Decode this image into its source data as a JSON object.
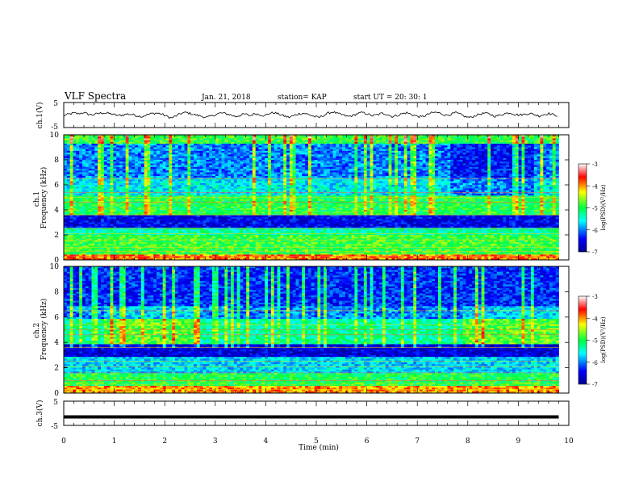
{
  "header": {
    "title": "VLF Spectra",
    "date": "Jan. 21, 2018",
    "station": "station= KAP",
    "start": "start  UT =   20: 30: 1"
  },
  "colorbar": {
    "label": "log(PSD)(V²/Hz)",
    "ticks": [
      "-3",
      "-4",
      "-5",
      "-6",
      "-7"
    ]
  },
  "chart_data": [
    {
      "type": "line",
      "panel": "ch1-waveform",
      "ylabel": "ch.1(V)",
      "ylim": [
        -5,
        5
      ],
      "yticks": [
        5,
        -5
      ],
      "xlim": [
        0,
        10
      ],
      "series": [
        {
          "values": [
            -0.2,
            0.3,
            0.8,
            0.5,
            1.0,
            0.3,
            0.1,
            0.6,
            0.9,
            0.7,
            0.3,
            -0.2,
            0.0,
            0.4,
            0.2,
            -0.3,
            -0.6,
            0.1,
            0.6,
            0.8,
            0.4,
            -0.5,
            -1.2,
            -0.3,
            0.7,
            1.0,
            0.5,
            0.0,
            -0.4,
            -1.0,
            -0.5,
            0.2,
            0.8,
            0.6,
            0.1,
            -0.6,
            -0.1,
            0.4,
            -0.3,
            0.6,
            0.2,
            -0.3,
            0.7,
            0.9,
            0.3,
            -0.4,
            -0.9,
            -0.2,
            0.5,
            0.7,
            0.2,
            -0.5,
            -1.0,
            -0.2,
            0.8,
            1.2,
            0.5,
            0.0,
            -0.6,
            -0.2,
            0.6,
            1.0,
            0.4,
            -0.3,
            0.1,
            0.7,
            0.3,
            -0.6,
            -0.2,
            0.5,
            0.9,
            0.2,
            -0.4,
            -0.8,
            0.0,
            0.8,
            1.1,
            0.6,
            -0.1,
            0.3,
            0.9,
            0.2,
            -0.7,
            -1.0,
            -0.2,
            0.4,
            0.8,
            0.3,
            -0.5,
            -0.1,
            0.6,
            0.9,
            0.3,
            0.0,
            0.3,
            0.7,
            0.2,
            -0.4,
            0.2,
            0.6,
            0.1,
            -0.3
          ]
        }
      ]
    },
    {
      "type": "heatmap",
      "panel": "ch1-spectrogram",
      "ylabel": "ch.1\nFrequency (kHz)",
      "ylim": [
        0,
        10
      ],
      "yticks": [
        0,
        2,
        4,
        6,
        8,
        10
      ],
      "xlim": [
        0,
        10
      ],
      "zlim": [
        -7,
        -3
      ]
    },
    {
      "type": "heatmap",
      "panel": "ch2-spectrogram",
      "ylabel": "ch.2\nFrequency (kHz)",
      "ylim": [
        0,
        10
      ],
      "yticks": [
        0,
        2,
        4,
        6,
        8,
        10
      ],
      "xlim": [
        0,
        10
      ],
      "zlim": [
        -7,
        -3
      ]
    },
    {
      "type": "line",
      "panel": "ch3-waveform",
      "ylabel": "ch.3(V)",
      "ylim": [
        -5,
        5
      ],
      "yticks": [
        5,
        -5
      ],
      "xlim": [
        0,
        10
      ],
      "xlabel": "Time (min)",
      "xticks": [
        0,
        1,
        2,
        3,
        4,
        5,
        6,
        7,
        8,
        9,
        10
      ],
      "series": [
        {
          "x": [
            0,
            9.8
          ],
          "values": [
            -1.5,
            -1.5
          ]
        }
      ]
    }
  ]
}
